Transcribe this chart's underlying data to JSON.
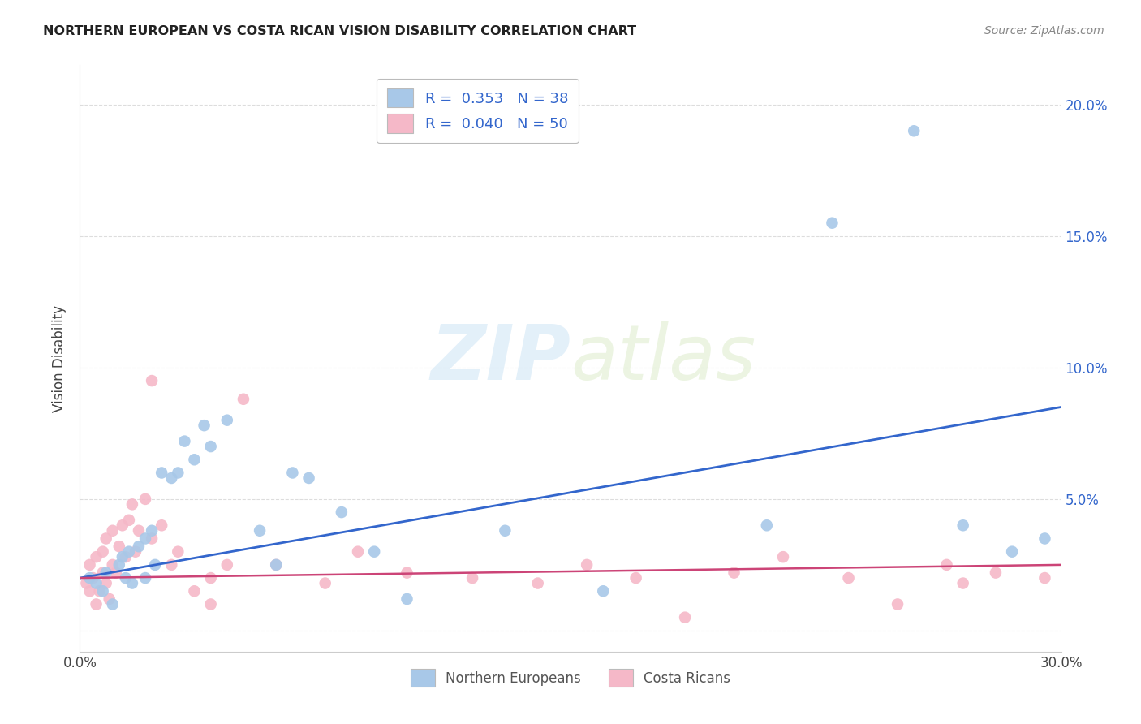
{
  "title": "NORTHERN EUROPEAN VS COSTA RICAN VISION DISABILITY CORRELATION CHART",
  "source": "Source: ZipAtlas.com",
  "ylabel": "Vision Disability",
  "xlim": [
    0.0,
    0.3
  ],
  "ylim": [
    -0.008,
    0.215
  ],
  "ytick_positions": [
    0.0,
    0.05,
    0.1,
    0.15,
    0.2
  ],
  "xtick_positions": [
    0.0,
    0.05,
    0.1,
    0.15,
    0.2,
    0.25,
    0.3
  ],
  "right_ytick_labels": [
    "",
    "5.0%",
    "10.0%",
    "15.0%",
    "20.0%"
  ],
  "xtick_labels": [
    "0.0%",
    "",
    "",
    "",
    "",
    "",
    "30.0%"
  ],
  "R_blue": 0.353,
  "N_blue": 38,
  "R_pink": 0.04,
  "N_pink": 50,
  "blue_color": "#a8c8e8",
  "pink_color": "#f5b8c8",
  "blue_line_color": "#3366cc",
  "pink_line_color": "#cc4477",
  "legend_label_blue": "Northern Europeans",
  "legend_label_pink": "Costa Ricans",
  "blue_scatter_x": [
    0.003,
    0.005,
    0.007,
    0.008,
    0.01,
    0.012,
    0.013,
    0.014,
    0.015,
    0.016,
    0.018,
    0.02,
    0.02,
    0.022,
    0.023,
    0.025,
    0.028,
    0.03,
    0.032,
    0.035,
    0.038,
    0.04,
    0.045,
    0.055,
    0.06,
    0.065,
    0.07,
    0.08,
    0.09,
    0.1,
    0.13,
    0.16,
    0.21,
    0.23,
    0.255,
    0.27,
    0.285,
    0.295
  ],
  "blue_scatter_y": [
    0.02,
    0.018,
    0.015,
    0.022,
    0.01,
    0.025,
    0.028,
    0.02,
    0.03,
    0.018,
    0.032,
    0.035,
    0.02,
    0.038,
    0.025,
    0.06,
    0.058,
    0.06,
    0.072,
    0.065,
    0.078,
    0.07,
    0.08,
    0.038,
    0.025,
    0.06,
    0.058,
    0.045,
    0.03,
    0.012,
    0.038,
    0.015,
    0.04,
    0.155,
    0.19,
    0.04,
    0.03,
    0.035
  ],
  "pink_scatter_x": [
    0.002,
    0.003,
    0.003,
    0.004,
    0.005,
    0.005,
    0.006,
    0.007,
    0.007,
    0.008,
    0.008,
    0.009,
    0.01,
    0.01,
    0.011,
    0.012,
    0.013,
    0.014,
    0.015,
    0.016,
    0.017,
    0.018,
    0.02,
    0.022,
    0.022,
    0.025,
    0.028,
    0.03,
    0.035,
    0.04,
    0.04,
    0.045,
    0.05,
    0.06,
    0.075,
    0.085,
    0.1,
    0.12,
    0.14,
    0.155,
    0.17,
    0.185,
    0.2,
    0.215,
    0.235,
    0.25,
    0.265,
    0.27,
    0.28,
    0.295
  ],
  "pink_scatter_y": [
    0.018,
    0.015,
    0.025,
    0.02,
    0.01,
    0.028,
    0.015,
    0.022,
    0.03,
    0.018,
    0.035,
    0.012,
    0.025,
    0.038,
    0.022,
    0.032,
    0.04,
    0.028,
    0.042,
    0.048,
    0.03,
    0.038,
    0.05,
    0.035,
    0.095,
    0.04,
    0.025,
    0.03,
    0.015,
    0.02,
    0.01,
    0.025,
    0.088,
    0.025,
    0.018,
    0.03,
    0.022,
    0.02,
    0.018,
    0.025,
    0.02,
    0.005,
    0.022,
    0.028,
    0.02,
    0.01,
    0.025,
    0.018,
    0.022,
    0.02
  ],
  "watermark_zip": "ZIP",
  "watermark_atlas": "atlas",
  "background_color": "#ffffff",
  "grid_color": "#dddddd"
}
